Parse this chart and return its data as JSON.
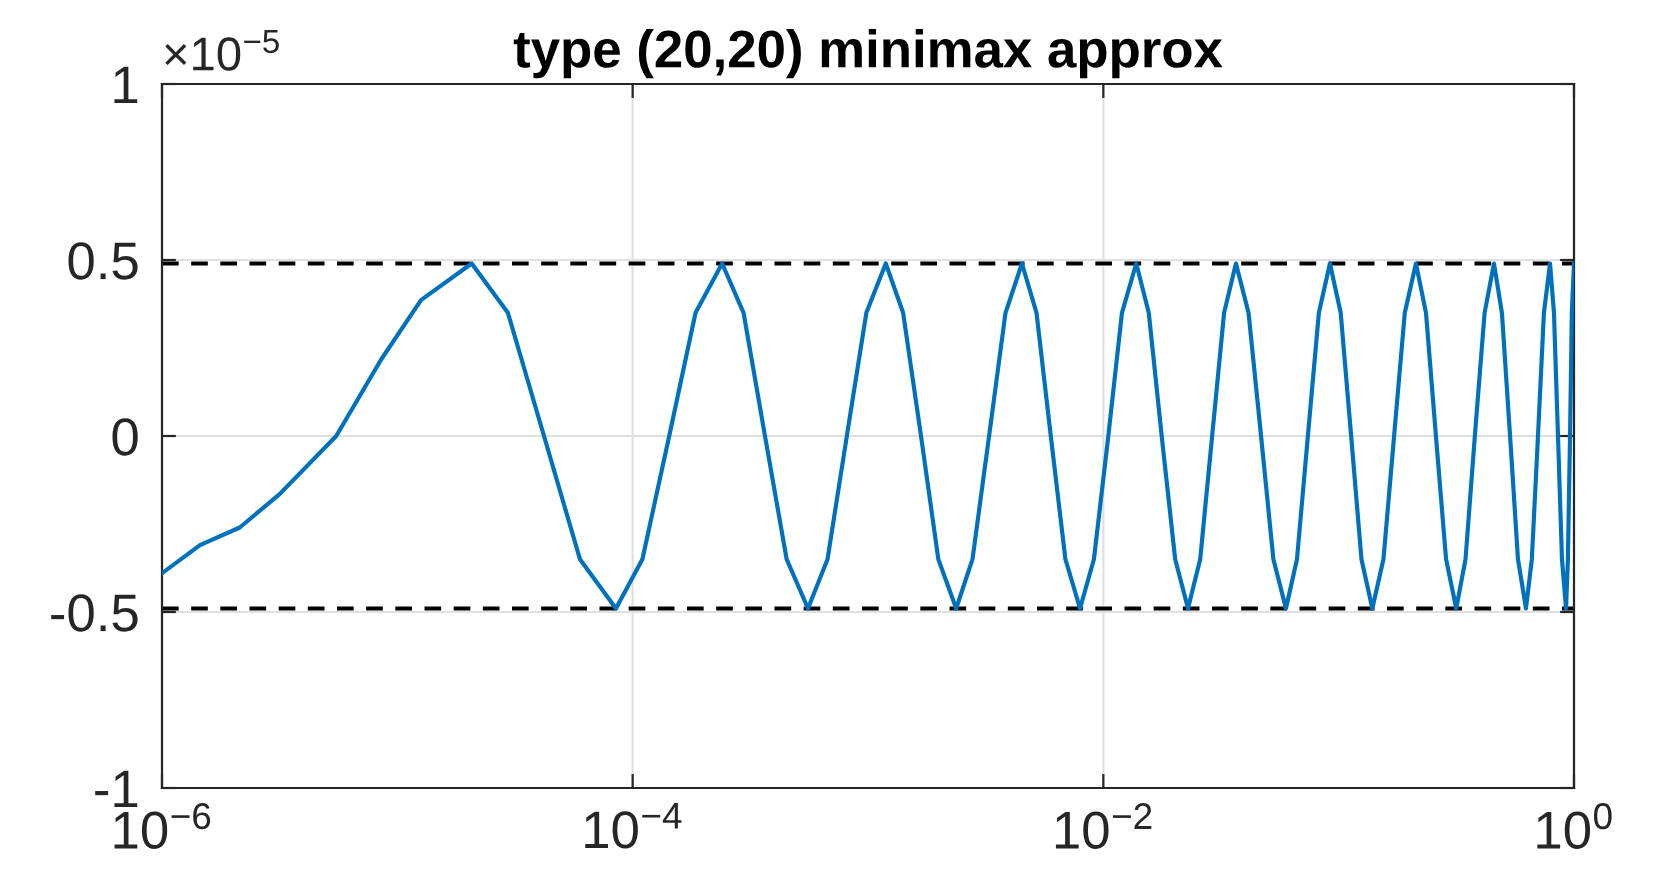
{
  "chart_data": {
    "type": "line",
    "title": "type (20,20) minimax approx",
    "annotations": [
      "×10$^{−5}$"
    ],
    "series": [
      {
        "color": "#0072bd",
        "x": [
          1e-06,
          1.45e-06,
          2.14e-06,
          3.16e-06,
          5.5e-06,
          8.51e-06,
          1.26e-05,
          2.07e-05,
          2.95e-05,
          4.2e-05,
          5.97e-05,
          8.49e-05,
          0.00011,
          0.000143,
          0.000185,
          0.00024,
          0.000296,
          0.000365,
          0.000451,
          0.000556,
          0.000673,
          0.000813,
          0.000984,
          0.00119,
          0.00141,
          0.00168,
          0.00199,
          0.00237,
          0.00278,
          0.00327,
          0.00384,
          0.00451,
          0.0052,
          0.00598,
          0.0069,
          0.00796,
          0.00912,
          0.0105,
          0.012,
          0.0138,
          0.0156,
          0.0177,
          0.0202,
          0.0229,
          0.0258,
          0.029,
          0.0326,
          0.0366,
          0.0414,
          0.0468,
          0.0528,
          0.0597,
          0.0665,
          0.074,
          0.0824,
          0.0918,
          0.102,
          0.113,
          0.125,
          0.139,
          0.155,
          0.172,
          0.191,
          0.213,
          0.235,
          0.259,
          0.286,
          0.316,
          0.346,
          0.379,
          0.417,
          0.457,
          0.494,
          0.535,
          0.578,
          0.625,
          0.662,
          0.703,
          0.745,
          0.791,
          0.822,
          0.855,
          0.889,
          0.925,
          0.942,
          0.962,
          0.979,
          1
        ],
        "values": [
          -0.39,
          -0.31,
          -0.26,
          -0.165,
          0,
          0.216,
          0.386,
          0.49,
          0.35,
          0,
          -0.35,
          -0.49,
          -0.35,
          0,
          0.35,
          0.49,
          0.35,
          0,
          -0.35,
          -0.49,
          -0.35,
          0,
          0.35,
          0.49,
          0.35,
          0,
          -0.35,
          -0.49,
          -0.35,
          0,
          0.35,
          0.49,
          0.35,
          0,
          -0.35,
          -0.49,
          -0.35,
          0,
          0.35,
          0.49,
          0.35,
          0,
          -0.35,
          -0.49,
          -0.35,
          0,
          0.35,
          0.49,
          0.35,
          0,
          -0.35,
          -0.49,
          -0.35,
          0,
          0.35,
          0.49,
          0.35,
          0,
          -0.35,
          -0.49,
          -0.35,
          0,
          0.35,
          0.49,
          0.35,
          0,
          -0.35,
          -0.49,
          -0.35,
          0,
          0.35,
          0.49,
          0.35,
          0,
          -0.35,
          -0.49,
          -0.35,
          0,
          0.35,
          0.49,
          0.35,
          0,
          -0.35,
          -0.49,
          -0.35,
          0,
          0.35,
          0.49
        ]
      }
    ],
    "ref_lines": [
      {
        "axis": "y",
        "value": 0.49,
        "color": "#000000",
        "line_style": "dashed"
      },
      {
        "axis": "y",
        "value": -0.49,
        "color": "#000000",
        "line_style": "dashed"
      }
    ],
    "log": "x",
    "xlim": [
      1e-06,
      1
    ],
    "xticks": [
      {
        "value": 1e-06,
        "label": "10$^{−6}$"
      },
      {
        "value": 0.0001,
        "label": "10$^{−4}$"
      },
      {
        "value": 0.01,
        "label": "10$^{−2}$"
      },
      {
        "value": 1,
        "label": "10$^{0}$"
      }
    ],
    "ylim": [
      -1,
      1
    ],
    "yticks": [
      -1,
      -0.5,
      0,
      0.5,
      1
    ],
    "grid": true,
    "line_style": "solid",
    "marker": "none",
    "legend": false
  }
}
